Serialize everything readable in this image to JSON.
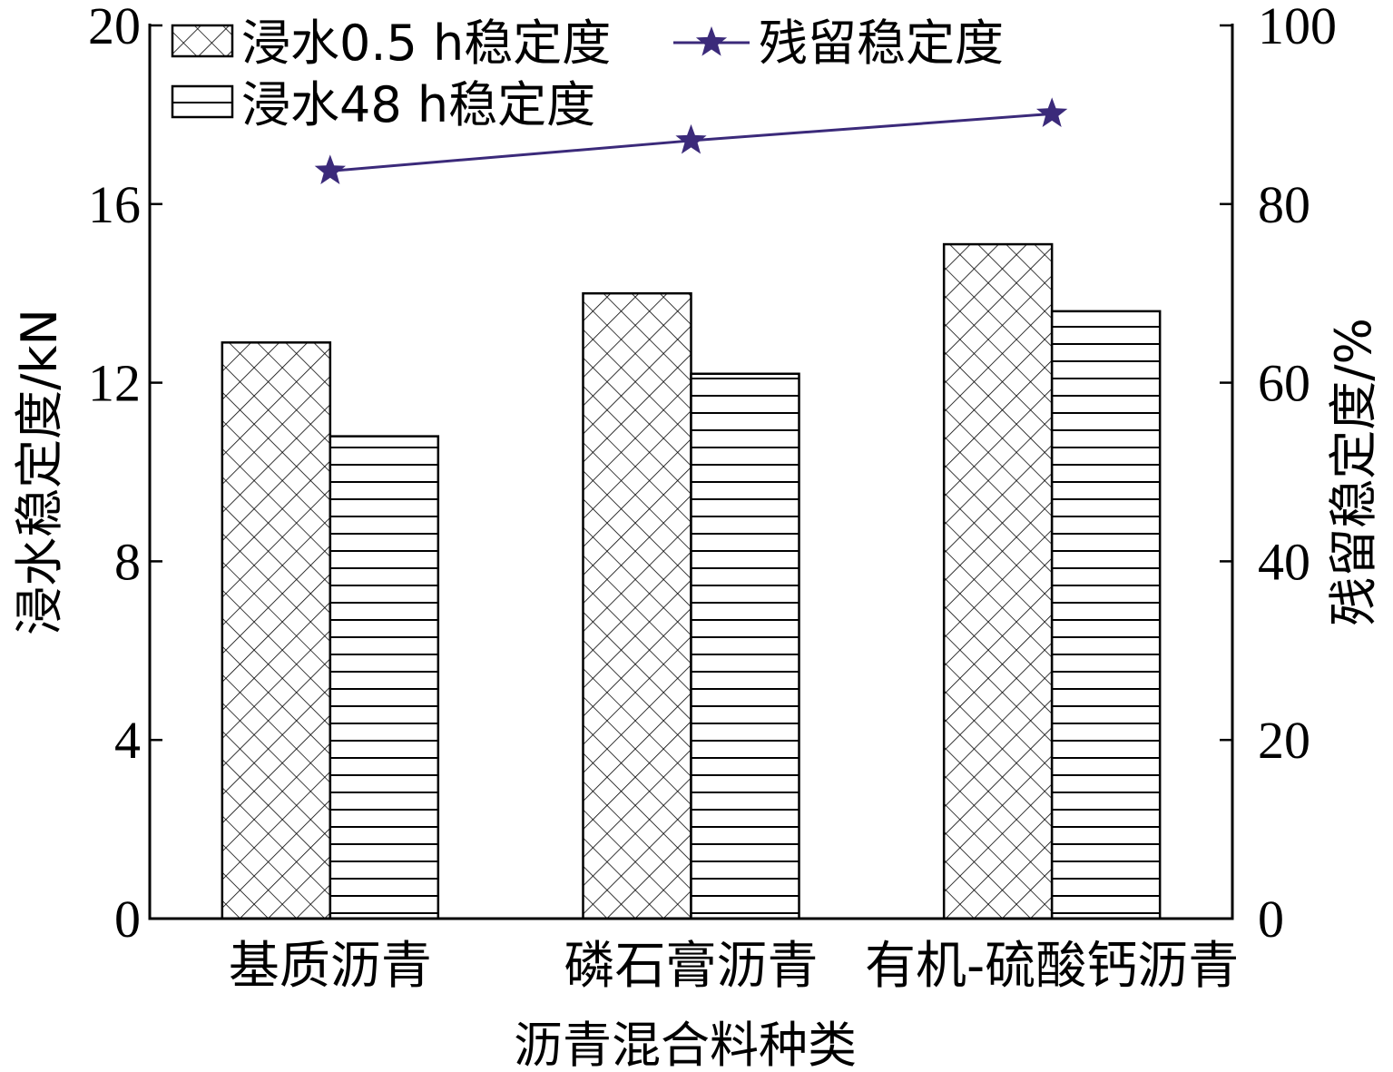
{
  "chart_data": {
    "type": "bar",
    "categories": [
      "基质沥青",
      "磷石膏沥青",
      "有机-硫酸钙沥青"
    ],
    "series": [
      {
        "name": "浸水0.5 h稳定度",
        "type": "bar",
        "axis": "left",
        "pattern": "crosshatch",
        "values": [
          12.9,
          14.0,
          15.1
        ]
      },
      {
        "name": "浸水48 h稳定度",
        "type": "bar",
        "axis": "left",
        "pattern": "horizontal-lines",
        "values": [
          10.8,
          12.2,
          13.6
        ]
      },
      {
        "name": "残留稳定度",
        "type": "line",
        "axis": "right",
        "marker": "star",
        "color": "#3b2a7a",
        "values": [
          83.7,
          87.1,
          90.1
        ]
      }
    ],
    "xlabel": "沥青混合料种类",
    "ylabel": "浸水稳定度/kN",
    "y2label": "残留稳定度/%",
    "ylim": [
      0,
      20
    ],
    "y2lim": [
      0,
      100
    ],
    "yticks": [
      "0",
      "4",
      "8",
      "12",
      "16",
      "20"
    ],
    "y2ticks": [
      "0",
      "20",
      "40",
      "60",
      "80",
      "100"
    ],
    "grid": false,
    "legend": "top-left"
  }
}
